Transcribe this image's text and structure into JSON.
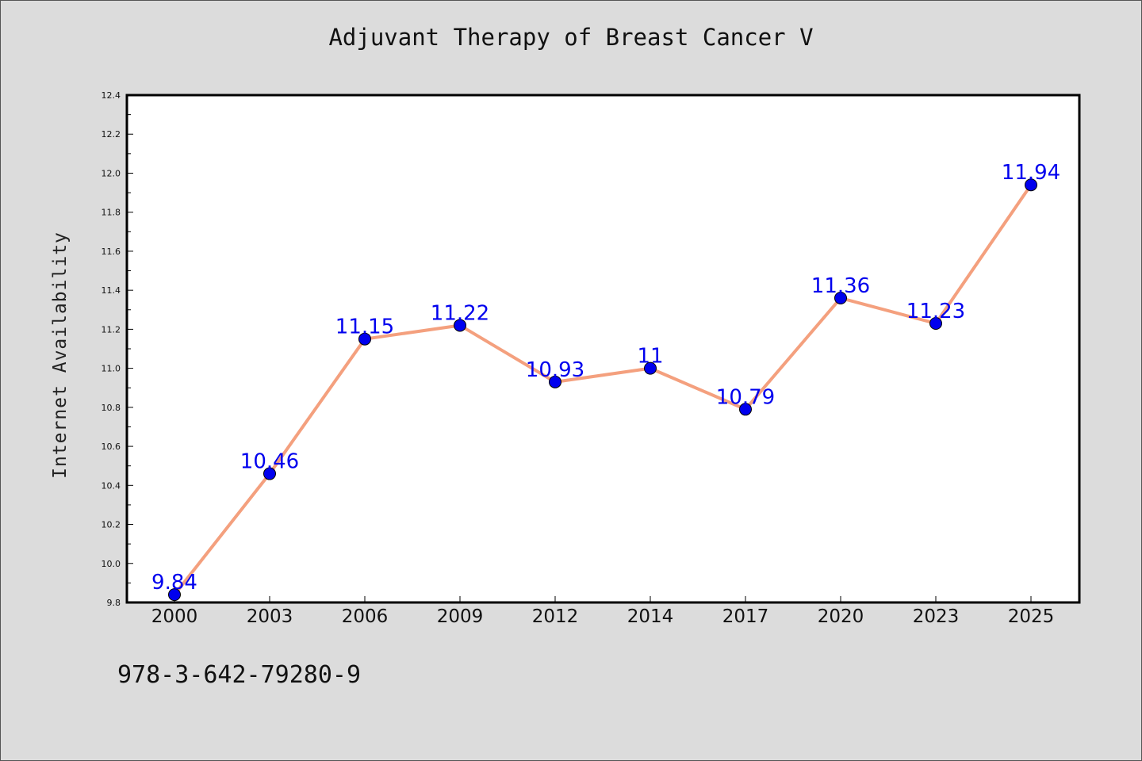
{
  "chart_data": {
    "type": "line",
    "title": "Adjuvant Therapy of Breast Cancer V",
    "xlabel": "",
    "ylabel": "Internet Availability",
    "categories": [
      "2000",
      "2003",
      "2006",
      "2009",
      "2012",
      "2014",
      "2017",
      "2020",
      "2023",
      "2025"
    ],
    "series": [
      {
        "values": [
          9.84,
          10.46,
          11.15,
          11.22,
          10.93,
          11.0,
          10.79,
          11.36,
          11.23,
          11.94
        ]
      }
    ],
    "data_labels": [
      "9.84",
      "10.46",
      "11.15",
      "11.22",
      "10.93",
      "11",
      "10.79",
      "11.36",
      "11.23",
      "11.94"
    ],
    "ylim": [
      9.8,
      12.4
    ],
    "yticks": [
      "9.8",
      "10.0",
      "10.2",
      "10.4",
      "10.6",
      "10.8",
      "11.0",
      "11.2",
      "11.4",
      "11.6",
      "11.8",
      "12.0",
      "12.2",
      "12.4"
    ],
    "grid": false,
    "legend": false,
    "colors": {
      "line": "#f4a07e",
      "marker": "#0000ee",
      "label": "#0000ee",
      "background": "#dcdcdc",
      "plot_background": "#ffffff"
    }
  },
  "footer": {
    "code": "978-3-642-79280-9"
  }
}
